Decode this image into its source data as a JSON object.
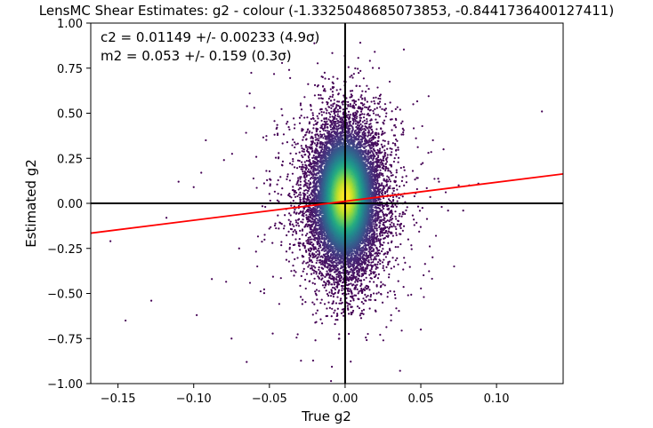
{
  "chart_data": {
    "type": "scatter",
    "title": "LensMC Shear Estimates: g2  - colour (-1.3325048685073853, -0.8441736400127411)",
    "xlabel": "True g2",
    "ylabel": "Estimated g2",
    "xlim": [
      -0.168,
      0.144
    ],
    "ylim": [
      -1.0,
      1.0
    ],
    "xticks": [
      -0.15,
      -0.1,
      -0.05,
      0.0,
      0.05,
      0.1
    ],
    "xtick_labels": [
      "−0.15",
      "−0.10",
      "−0.05",
      "0.00",
      "0.05",
      "0.10"
    ],
    "yticks": [
      -1.0,
      -0.75,
      -0.5,
      -0.25,
      0.0,
      0.25,
      0.5,
      0.75,
      1.0
    ],
    "ytick_labels": [
      "−1.00",
      "−0.75",
      "−0.50",
      "−0.25",
      "0.00",
      "0.25",
      "0.50",
      "0.75",
      "1.00"
    ],
    "annotations": [
      "c2 = 0.01149 +/- 0.00233 (4.9σ)",
      "m2 = 0.053 +/- 0.159 (0.3σ)"
    ],
    "fit_line": {
      "intercept": 0.01149,
      "slope": 1.053,
      "color": "#ff0000"
    },
    "reference_lines": {
      "x": 0.0,
      "y": 0.0,
      "color": "#000000"
    },
    "point_colormap": "viridis",
    "grid": false,
    "distribution": {
      "x_center": 0.0,
      "x_spread": 0.012,
      "y_center": 0.03,
      "y_spread": 0.22
    },
    "outliers": [
      {
        "x": 0.13,
        "y": 0.51
      },
      {
        "x": -0.155,
        "y": -0.21
      },
      {
        "x": -0.145,
        "y": -0.65
      },
      {
        "x": -0.128,
        "y": -0.54
      },
      {
        "x": -0.118,
        "y": -0.08
      },
      {
        "x": -0.11,
        "y": 0.12
      },
      {
        "x": -0.1,
        "y": 0.09
      },
      {
        "x": -0.098,
        "y": -0.62
      },
      {
        "x": -0.095,
        "y": 0.17
      },
      {
        "x": -0.092,
        "y": 0.35
      },
      {
        "x": -0.088,
        "y": -0.42
      },
      {
        "x": -0.08,
        "y": 0.24
      },
      {
        "x": -0.075,
        "y": -0.75
      },
      {
        "x": -0.07,
        "y": -0.25
      },
      {
        "x": -0.065,
        "y": -0.88
      },
      {
        "x": -0.063,
        "y": 0.61
      },
      {
        "x": -0.06,
        "y": 0.53
      },
      {
        "x": -0.058,
        "y": -0.35
      },
      {
        "x": -0.052,
        "y": 0.18
      },
      {
        "x": -0.048,
        "y": -0.22
      },
      {
        "x": 0.052,
        "y": -0.52
      },
      {
        "x": 0.055,
        "y": 0.28
      },
      {
        "x": 0.058,
        "y": 0.35
      },
      {
        "x": 0.06,
        "y": -0.18
      },
      {
        "x": 0.062,
        "y": 0.12
      },
      {
        "x": 0.065,
        "y": 0.3
      },
      {
        "x": 0.068,
        "y": -0.04
      },
      {
        "x": 0.072,
        "y": -0.35
      },
      {
        "x": 0.075,
        "y": 0.1
      },
      {
        "x": 0.078,
        "y": -0.04
      },
      {
        "x": 0.082,
        "y": 0.1
      },
      {
        "x": 0.088,
        "y": 0.11
      },
      {
        "x": 0.05,
        "y": -0.7
      },
      {
        "x": -0.045,
        "y": 0.42
      },
      {
        "x": 0.045,
        "y": 0.55
      }
    ]
  }
}
